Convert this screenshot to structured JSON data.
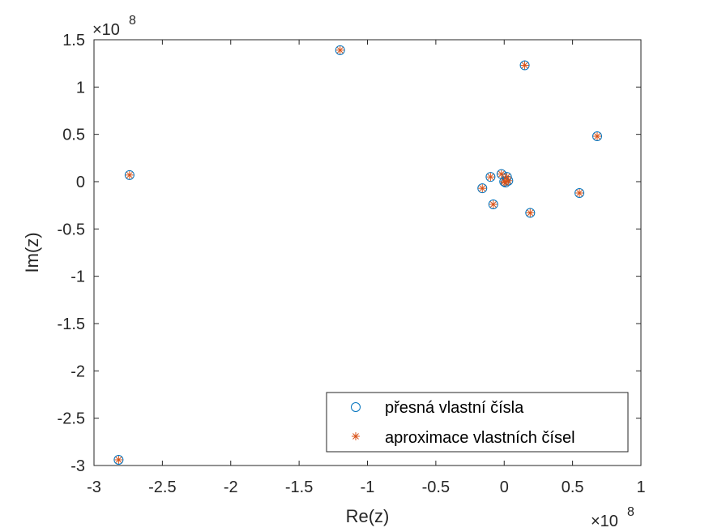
{
  "colors": {
    "exact": "#0072BD",
    "approx": "#D95319",
    "axis": "#262626",
    "background": "#ffffff"
  },
  "chart_data": {
    "type": "scatter",
    "xlabel": "Re(z)",
    "ylabel": "Im(z)",
    "x_exponent_label": "×10",
    "x_exponent_power": "8",
    "y_exponent_label": "×10",
    "y_exponent_power": "8",
    "xlim": [
      -300000000.0,
      100000000.0
    ],
    "ylim": [
      -300000000.0,
      150000000.0
    ],
    "xticks": [
      -300000000.0,
      -250000000.0,
      -200000000.0,
      -150000000.0,
      -100000000.0,
      -50000000.0,
      0,
      50000000.0,
      100000000.0
    ],
    "xtick_labels": [
      "-3",
      "-2.5",
      "-2",
      "-1.5",
      "-1",
      "-0.5",
      "0",
      "0.5",
      "1"
    ],
    "yticks": [
      -300000000.0,
      -250000000.0,
      -200000000.0,
      -150000000.0,
      -100000000.0,
      -50000000.0,
      0,
      50000000.0,
      100000000.0,
      150000000.0
    ],
    "ytick_labels": [
      "-3",
      "-2.5",
      "-2",
      "-1.5",
      "-1",
      "-0.5",
      "0",
      "0.5",
      "1",
      "1.5"
    ],
    "grid": false,
    "legend_position": "bottom-right",
    "series": [
      {
        "name": "přesná vlastní čísla",
        "marker": "circle",
        "x": [
          -120000000.0,
          15000000.0,
          -274000000.0,
          68000000.0,
          55000000.0,
          19000000.0,
          -10000000.0,
          -8000000.0,
          -16000000.0,
          -2000000.0,
          2000000.0,
          0.0,
          1000000.0,
          3000000.0,
          -282000000.0
        ],
        "y": [
          139000000.0,
          123000000.0,
          7000000.0,
          48000000.0,
          -12000000.0,
          -33000000.0,
          5000000.0,
          -24000000.0,
          -7000000.0,
          8000000.0,
          5000000.0,
          0.0,
          -1000000.0,
          1000000.0,
          -294000000.0
        ]
      },
      {
        "name": "aproximace vlastních čísel",
        "marker": "asterisk",
        "x": [
          -120000000.0,
          15000000.0,
          -274000000.0,
          68000000.0,
          55000000.0,
          19000000.0,
          -10000000.0,
          -8000000.0,
          -16000000.0,
          -2000000.0,
          2000000.0,
          0.0,
          1000000.0,
          3000000.0,
          -282000000.0
        ],
        "y": [
          139000000.0,
          123000000.0,
          7000000.0,
          48000000.0,
          -12000000.0,
          -33000000.0,
          5000000.0,
          -24000000.0,
          -7000000.0,
          8000000.0,
          5000000.0,
          0.0,
          -1000000.0,
          1000000.0,
          -294000000.0
        ]
      }
    ]
  }
}
